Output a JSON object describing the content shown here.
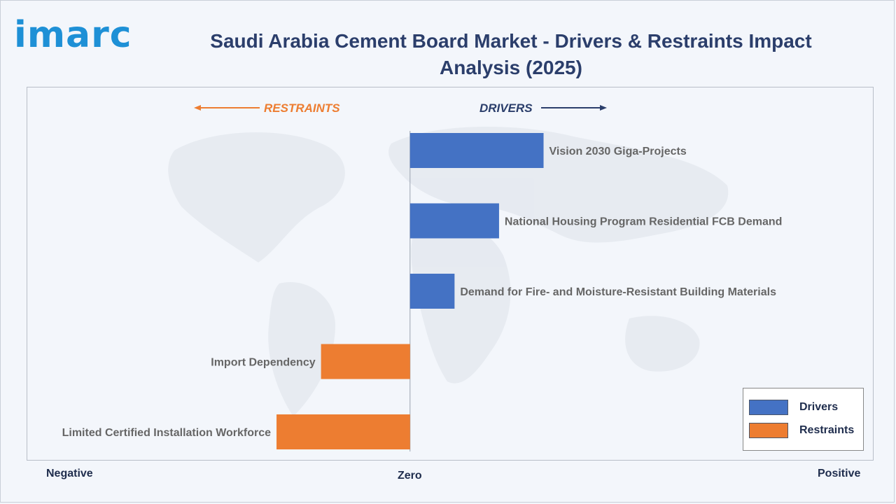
{
  "header": {
    "logo_text": "imarc",
    "title": "Saudi Arabia Cement Board Market - Drivers & Restraints Impact Analysis (2025)"
  },
  "colors": {
    "drivers": "#4472c4",
    "restraints": "#ed7d31",
    "drivers_text": "#2b3e6b",
    "restraints_text": "#ed7d31",
    "label_text": "#666666"
  },
  "direction_labels": {
    "restraints": "RESTRAINTS",
    "drivers": "DRIVERS"
  },
  "axis": {
    "negative": "Negative",
    "zero": "Zero",
    "positive": "Positive"
  },
  "legend": {
    "drivers": "Drivers",
    "restraints": "Restraints",
    "placement": "bottom-right"
  },
  "chart_data": {
    "type": "bar",
    "orientation": "horizontal",
    "categories": [
      "Vision 2030 Giga-Projects",
      "National Housing Program Residential FCB Demand",
      "Demand for Fire- and Moisture-Resistant Building Materials",
      "Import Dependency",
      "Limited Certified Installation Workforce"
    ],
    "series": [
      {
        "name": "Drivers",
        "values": [
          3.0,
          2.0,
          1.0,
          null,
          null
        ]
      },
      {
        "name": "Restraints",
        "values": [
          null,
          null,
          null,
          -2.0,
          -3.0
        ]
      }
    ],
    "xlim": [
      -8.6,
      10.4
    ],
    "grid": false
  }
}
